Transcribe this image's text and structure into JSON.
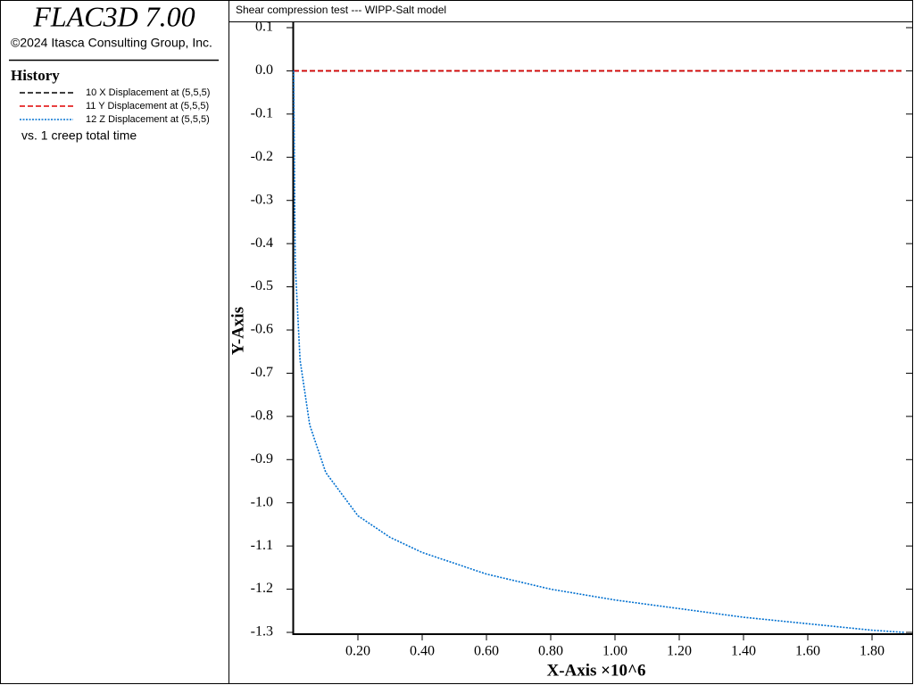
{
  "panel": {
    "app_title": "FLAC3D 7.00",
    "copyright": "©2024 Itasca Consulting Group, Inc.",
    "history_title": "History",
    "x_note": "vs. 1 creep total time"
  },
  "chart_data": {
    "type": "line",
    "title": "Shear compression test --- WIPP-Salt model",
    "x_label": "X-Axis ×10^6",
    "y_label": "Y-Axis",
    "x": [
      0,
      0.005,
      0.02,
      0.05,
      0.1,
      0.2,
      0.3,
      0.4,
      0.5,
      0.6,
      0.8,
      1.0,
      1.2,
      1.4,
      1.6,
      1.8,
      1.9
    ],
    "series": [
      {
        "name": "10 X Displacement at (5,5,5)",
        "color": "#000000",
        "dash": "dashed",
        "values": [
          0,
          0,
          0,
          0,
          0,
          0,
          0,
          0,
          0,
          0,
          0,
          0,
          0,
          0,
          0,
          0,
          0
        ]
      },
      {
        "name": "11 Y Displacement at (5,5,5)",
        "color": "#e00000",
        "dash": "dashed",
        "values": [
          0,
          0,
          0,
          0,
          0,
          0,
          0,
          0,
          0,
          0,
          0,
          0,
          0,
          0,
          0,
          0,
          0
        ]
      },
      {
        "name": "12 Z Displacement at (5,5,5)",
        "color": "#0070d0",
        "dash": "dotted",
        "values": [
          0,
          -0.45,
          -0.67,
          -0.82,
          -0.93,
          -1.03,
          -1.08,
          -1.115,
          -1.14,
          -1.165,
          -1.2,
          -1.225,
          -1.245,
          -1.265,
          -1.28,
          -1.295,
          -1.3
        ]
      }
    ],
    "xlim": [
      0,
      1.9
    ],
    "ylim": [
      -1.3,
      0.1
    ],
    "xticks": [
      {
        "value": 0.2,
        "label": "0.20"
      },
      {
        "value": 0.4,
        "label": "0.40"
      },
      {
        "value": 0.6,
        "label": "0.60"
      },
      {
        "value": 0.8,
        "label": "0.80"
      },
      {
        "value": 1.0,
        "label": "1.00"
      },
      {
        "value": 1.2,
        "label": "1.20"
      },
      {
        "value": 1.4,
        "label": "1.40"
      },
      {
        "value": 1.6,
        "label": "1.60"
      },
      {
        "value": 1.8,
        "label": "1.80"
      }
    ],
    "yticks": [
      0.1,
      {
        "value": 0,
        "label": "0.0"
      },
      -0.1,
      -0.2,
      -0.3,
      -0.4,
      -0.5,
      -0.6,
      -0.7,
      -0.8,
      -0.9,
      {
        "value": -1,
        "label": "-1.0"
      },
      -1.1,
      -1.2,
      -1.3
    ]
  }
}
